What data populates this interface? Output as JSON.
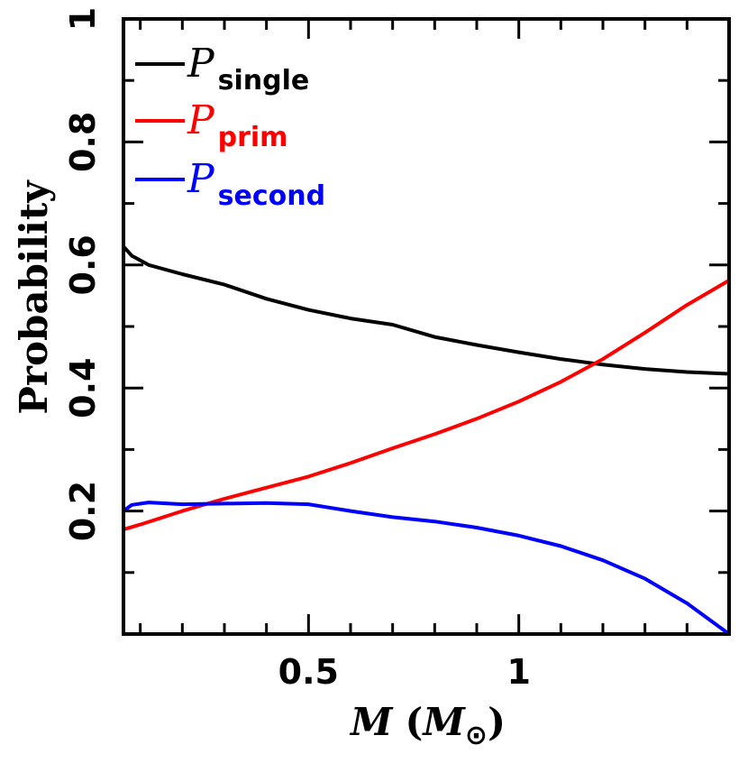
{
  "chart_data": {
    "type": "line",
    "xlabel_symbol": "M",
    "xlabel_unit_open": "(",
    "xlabel_unit_symbol": "M",
    "xlabel_unit_sub": "⊙",
    "xlabel_unit_close": ")",
    "ylabel": "Probability",
    "xlim": [
      0.06,
      1.5
    ],
    "ylim": [
      0.0,
      1.0
    ],
    "x_ticks": [
      {
        "value": 0.5,
        "label": "0.5"
      },
      {
        "value": 1.0,
        "label": "1"
      }
    ],
    "x_minor_ticks": [
      0.1,
      0.2,
      0.3,
      0.4,
      0.6,
      0.7,
      0.8,
      0.9,
      1.1,
      1.2,
      1.3,
      1.4
    ],
    "y_ticks": [
      {
        "value": 0.2,
        "label": "0.2"
      },
      {
        "value": 0.4,
        "label": "0.4"
      },
      {
        "value": 0.6,
        "label": "0.6"
      },
      {
        "value": 0.8,
        "label": "0.8"
      },
      {
        "value": 1.0,
        "label": "1"
      }
    ],
    "y_minor_ticks": [
      0.1,
      0.3,
      0.5,
      0.7,
      0.9
    ],
    "grid": false,
    "legend_position": "top-left",
    "series": [
      {
        "name_symbol": "P",
        "name_sub": "single",
        "color": "#000000",
        "x": [
          0.06,
          0.08,
          0.12,
          0.2,
          0.3,
          0.4,
          0.5,
          0.6,
          0.7,
          0.8,
          0.9,
          1.0,
          1.1,
          1.2,
          1.3,
          1.4,
          1.5
        ],
        "y": [
          0.63,
          0.615,
          0.6,
          0.585,
          0.568,
          0.545,
          0.527,
          0.513,
          0.503,
          0.483,
          0.47,
          0.458,
          0.447,
          0.438,
          0.431,
          0.426,
          0.423
        ]
      },
      {
        "name_symbol": "P",
        "name_sub": "prim",
        "color": "#ff0000",
        "x": [
          0.06,
          0.1,
          0.2,
          0.3,
          0.4,
          0.5,
          0.6,
          0.7,
          0.8,
          0.9,
          1.0,
          1.1,
          1.2,
          1.3,
          1.4,
          1.5
        ],
        "y": [
          0.17,
          0.178,
          0.2,
          0.22,
          0.238,
          0.256,
          0.278,
          0.302,
          0.325,
          0.35,
          0.378,
          0.41,
          0.447,
          0.49,
          0.535,
          0.575
        ]
      },
      {
        "name_symbol": "P",
        "name_sub": "second",
        "color": "#0000ff",
        "x": [
          0.06,
          0.08,
          0.12,
          0.2,
          0.3,
          0.4,
          0.5,
          0.6,
          0.7,
          0.8,
          0.9,
          1.0,
          1.1,
          1.2,
          1.3,
          1.4,
          1.5
        ],
        "y": [
          0.2,
          0.21,
          0.214,
          0.211,
          0.212,
          0.213,
          0.211,
          0.2,
          0.19,
          0.183,
          0.173,
          0.16,
          0.143,
          0.12,
          0.09,
          0.05,
          0.0
        ]
      }
    ]
  }
}
